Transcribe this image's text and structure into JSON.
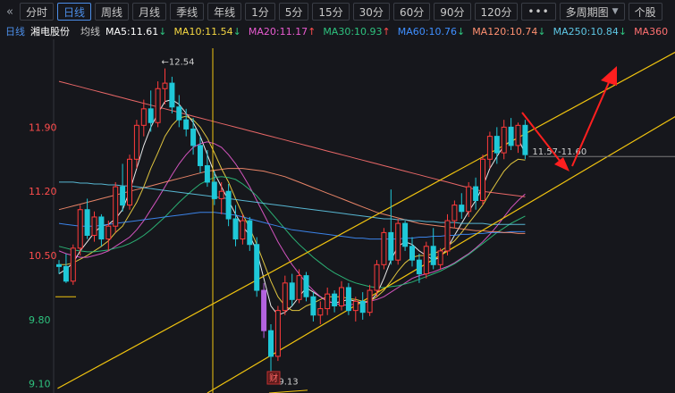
{
  "toolbar": {
    "collapse_glyph": "«",
    "tabs": [
      {
        "label": "分时",
        "active": false
      },
      {
        "label": "日线",
        "active": true
      },
      {
        "label": "周线",
        "active": false
      },
      {
        "label": "月线",
        "active": false
      },
      {
        "label": "季线",
        "active": false
      },
      {
        "label": "年线",
        "active": false
      },
      {
        "label": "1分",
        "active": false
      },
      {
        "label": "5分",
        "active": false
      },
      {
        "label": "15分",
        "active": false
      },
      {
        "label": "30分",
        "active": false
      },
      {
        "label": "60分",
        "active": false
      },
      {
        "label": "90分",
        "active": false
      },
      {
        "label": "120分",
        "active": false
      }
    ],
    "more_label": "•••",
    "multi_period_label": "多周期图",
    "stock_label": "个股"
  },
  "infobar": {
    "period": "日线",
    "stock_name": "湘电股份",
    "ma_label": "均线",
    "ma": [
      {
        "text": "MA5:11.61",
        "arrow": "↓",
        "color": "#ffffff",
        "arrow_color": "#2ec27e"
      },
      {
        "text": "MA10:11.54",
        "arrow": "↓",
        "color": "#f5d742",
        "arrow_color": "#2ec27e"
      },
      {
        "text": "MA20:11.17",
        "arrow": "↑",
        "color": "#e85bd0",
        "arrow_color": "#ff4d4d"
      },
      {
        "text": "MA30:10.93",
        "arrow": "↑",
        "color": "#2ec27e",
        "arrow_color": "#ff4d4d"
      },
      {
        "text": "MA60:10.76",
        "arrow": "↓",
        "color": "#3f8fff",
        "arrow_color": "#2ec27e"
      },
      {
        "text": "MA120:10.74",
        "arrow": "↓",
        "color": "#ff9070",
        "arrow_color": "#2ec27e"
      },
      {
        "text": "MA250:10.84",
        "arrow": "↓",
        "color": "#5ec8e6",
        "arrow_color": "#2ec27e"
      },
      {
        "text": "MA360",
        "arrow": "",
        "color": "#ff7070",
        "arrow_color": "#ff7070"
      }
    ]
  },
  "colors": {
    "up": "#ff3b3b",
    "down": "#1fc8d8",
    "down_special": "#b463e0",
    "axis_text": "#ff4d4d",
    "axis_text_low": "#2ec27e",
    "trend": "#f1c40f",
    "arrow": "#ff1f1f"
  },
  "chart_data": {
    "type": "candlestick",
    "y_ticks": [
      "11.90",
      "11.20",
      "10.50",
      "9.80",
      "9.10"
    ],
    "ylim": [
      9.0,
      12.8
    ],
    "annotations": {
      "high_label": "←12.54",
      "low_label": "←9.13",
      "range_label": "11.57-11.60",
      "event_marker": "财"
    },
    "candles": [
      [
        10.4,
        10.45,
        10.3,
        10.38
      ],
      [
        10.38,
        10.52,
        10.2,
        10.22
      ],
      [
        10.22,
        10.62,
        10.18,
        10.58
      ],
      [
        10.58,
        11.05,
        10.5,
        11.0
      ],
      [
        11.0,
        11.12,
        10.68,
        10.72
      ],
      [
        10.72,
        10.98,
        10.65,
        10.92
      ],
      [
        10.92,
        10.95,
        10.6,
        10.68
      ],
      [
        10.68,
        10.88,
        10.55,
        10.82
      ],
      [
        10.82,
        11.3,
        10.75,
        11.25
      ],
      [
        11.25,
        11.5,
        10.98,
        11.05
      ],
      [
        11.05,
        11.6,
        11.0,
        11.55
      ],
      [
        11.55,
        11.98,
        11.45,
        11.92
      ],
      [
        11.92,
        12.2,
        11.8,
        12.1
      ],
      [
        12.1,
        12.3,
        11.85,
        11.95
      ],
      [
        11.95,
        12.4,
        11.9,
        12.32
      ],
      [
        12.32,
        12.54,
        12.15,
        12.38
      ],
      [
        12.38,
        12.45,
        12.05,
        12.12
      ],
      [
        12.12,
        12.25,
        11.9,
        11.98
      ],
      [
        11.98,
        12.1,
        11.8,
        11.88
      ],
      [
        11.88,
        12.0,
        11.6,
        11.7
      ],
      [
        11.7,
        11.8,
        11.4,
        11.48
      ],
      [
        11.48,
        11.65,
        11.25,
        11.3
      ],
      [
        11.3,
        11.42,
        11.05,
        11.12
      ],
      [
        11.12,
        11.3,
        10.95,
        11.2
      ],
      [
        11.2,
        11.28,
        10.82,
        10.9
      ],
      [
        10.9,
        11.05,
        10.6,
        10.68
      ],
      [
        10.68,
        10.95,
        10.62,
        10.88
      ],
      [
        10.88,
        10.92,
        10.55,
        10.62
      ],
      [
        10.62,
        10.7,
        10.05,
        10.12
      ],
      [
        10.12,
        10.2,
        9.6,
        9.68
      ],
      [
        9.68,
        9.75,
        9.13,
        9.4
      ],
      [
        9.4,
        9.95,
        9.35,
        9.9
      ],
      [
        9.9,
        10.28,
        9.85,
        10.2
      ],
      [
        10.2,
        10.3,
        9.95,
        10.02
      ],
      [
        10.02,
        10.35,
        9.98,
        10.28
      ],
      [
        10.28,
        10.32,
        10.0,
        10.05
      ],
      [
        10.05,
        10.1,
        9.78,
        9.85
      ],
      [
        9.85,
        10.0,
        9.75,
        9.92
      ],
      [
        9.92,
        10.15,
        9.85,
        10.08
      ],
      [
        10.08,
        10.12,
        9.88,
        9.95
      ],
      [
        9.95,
        10.22,
        9.9,
        10.15
      ],
      [
        10.15,
        10.2,
        9.85,
        9.9
      ],
      [
        9.9,
        10.05,
        9.78,
        10.0
      ],
      [
        10.0,
        10.1,
        9.8,
        9.88
      ],
      [
        9.88,
        10.18,
        9.84,
        10.12
      ],
      [
        10.12,
        10.45,
        10.05,
        10.4
      ],
      [
        10.4,
        10.8,
        10.35,
        10.75
      ],
      [
        10.75,
        11.22,
        10.4,
        10.45
      ],
      [
        10.45,
        10.9,
        10.4,
        10.85
      ],
      [
        10.85,
        10.88,
        10.55,
        10.6
      ],
      [
        10.6,
        10.7,
        10.38,
        10.45
      ],
      [
        10.45,
        10.52,
        10.2,
        10.3
      ],
      [
        10.3,
        10.65,
        10.25,
        10.6
      ],
      [
        10.6,
        10.8,
        10.35,
        10.4
      ],
      [
        10.4,
        10.58,
        10.35,
        10.55
      ],
      [
        10.55,
        10.95,
        10.5,
        10.88
      ],
      [
        10.88,
        11.1,
        10.8,
        11.05
      ],
      [
        11.05,
        11.18,
        10.9,
        10.98
      ],
      [
        10.98,
        11.3,
        10.92,
        11.25
      ],
      [
        11.25,
        11.35,
        11.0,
        11.1
      ],
      [
        11.1,
        11.6,
        11.05,
        11.55
      ],
      [
        11.55,
        11.85,
        11.45,
        11.8
      ],
      [
        11.8,
        11.9,
        11.5,
        11.62
      ],
      [
        11.62,
        11.98,
        11.55,
        11.9
      ],
      [
        11.9,
        12.0,
        11.65,
        11.7
      ],
      [
        11.7,
        11.95,
        11.62,
        11.92
      ],
      [
        11.92,
        11.98,
        11.55,
        11.6
      ]
    ],
    "ma_series": [
      {
        "name": "MA5",
        "color": "#ffffff",
        "values": [
          10.3,
          10.35,
          10.42,
          10.55,
          10.65,
          10.75,
          10.82,
          10.84,
          10.9,
          11.0,
          11.2,
          11.45,
          11.7,
          11.9,
          12.05,
          12.18,
          12.2,
          12.15,
          12.05,
          11.95,
          11.8,
          11.6,
          11.4,
          11.25,
          11.1,
          10.95,
          10.82,
          10.72,
          10.55,
          10.25,
          9.95,
          9.85,
          9.88,
          9.95,
          10.05,
          10.15,
          10.1,
          10.05,
          10.0,
          9.98,
          10.0,
          10.02,
          10.0,
          9.98,
          10.0,
          10.08,
          10.25,
          10.45,
          10.6,
          10.65,
          10.62,
          10.55,
          10.5,
          10.45,
          10.48,
          10.58,
          10.72,
          10.85,
          10.98,
          11.1,
          11.25,
          11.45,
          11.58,
          11.7,
          11.75,
          11.78,
          11.61
        ]
      },
      {
        "name": "MA10",
        "color": "#f5d742",
        "values": [
          10.4,
          10.4,
          10.42,
          10.46,
          10.5,
          10.55,
          10.6,
          10.66,
          10.75,
          10.82,
          10.95,
          11.08,
          11.25,
          11.45,
          11.62,
          11.8,
          11.92,
          12.0,
          12.02,
          11.98,
          11.9,
          11.78,
          11.62,
          11.45,
          11.3,
          11.12,
          10.95,
          10.8,
          10.62,
          10.42,
          10.22,
          10.05,
          9.95,
          9.9,
          9.9,
          9.95,
          9.98,
          10.02,
          10.05,
          10.05,
          10.05,
          10.03,
          10.02,
          10.0,
          10.0,
          10.05,
          10.12,
          10.22,
          10.33,
          10.42,
          10.48,
          10.5,
          10.5,
          10.52,
          10.55,
          10.6,
          10.66,
          10.75,
          10.85,
          10.95,
          11.05,
          11.18,
          11.3,
          11.42,
          11.5,
          11.55,
          11.54
        ]
      },
      {
        "name": "MA20",
        "color": "#e85bd0",
        "values": [
          10.55,
          10.52,
          10.5,
          10.48,
          10.48,
          10.5,
          10.52,
          10.55,
          10.6,
          10.65,
          10.7,
          10.78,
          10.88,
          11.0,
          11.12,
          11.25,
          11.38,
          11.5,
          11.6,
          11.68,
          11.72,
          11.74,
          11.72,
          11.68,
          11.6,
          11.5,
          11.38,
          11.25,
          11.1,
          10.95,
          10.8,
          10.65,
          10.52,
          10.4,
          10.3,
          10.2,
          10.12,
          10.05,
          10.0,
          9.98,
          9.96,
          9.96,
          9.97,
          9.98,
          10.0,
          10.02,
          10.05,
          10.1,
          10.15,
          10.2,
          10.25,
          10.28,
          10.3,
          10.32,
          10.35,
          10.38,
          10.42,
          10.47,
          10.52,
          10.58,
          10.65,
          10.73,
          10.82,
          10.92,
          11.02,
          11.1,
          11.17
        ]
      },
      {
        "name": "MA30",
        "color": "#2ec27e",
        "values": [
          10.6,
          10.58,
          10.56,
          10.55,
          10.54,
          10.54,
          10.55,
          10.56,
          10.58,
          10.6,
          10.63,
          10.67,
          10.72,
          10.78,
          10.85,
          10.92,
          11.0,
          11.08,
          11.15,
          11.22,
          11.28,
          11.32,
          11.35,
          11.36,
          11.35,
          11.33,
          11.28,
          11.22,
          11.15,
          11.06,
          10.97,
          10.88,
          10.79,
          10.7,
          10.62,
          10.55,
          10.48,
          10.42,
          10.36,
          10.31,
          10.27,
          10.23,
          10.2,
          10.18,
          10.16,
          10.15,
          10.15,
          10.16,
          10.17,
          10.19,
          10.21,
          10.24,
          10.27,
          10.3,
          10.33,
          10.37,
          10.41,
          10.46,
          10.51,
          10.57,
          10.63,
          10.69,
          10.75,
          10.8,
          10.85,
          10.89,
          10.93
        ]
      },
      {
        "name": "MA60",
        "color": "#3f8fff",
        "values": [
          10.85,
          10.84,
          10.83,
          10.82,
          10.82,
          10.82,
          10.83,
          10.84,
          10.85,
          10.86,
          10.87,
          10.88,
          10.89,
          10.9,
          10.91,
          10.92,
          10.93,
          10.94,
          10.95,
          10.96,
          10.97,
          10.97,
          10.97,
          10.96,
          10.95,
          10.94,
          10.92,
          10.9,
          10.88,
          10.86,
          10.84,
          10.82,
          10.8,
          10.78,
          10.77,
          10.76,
          10.75,
          10.74,
          10.73,
          10.72,
          10.71,
          10.7,
          10.69,
          10.69,
          10.68,
          10.68,
          10.68,
          10.68,
          10.68,
          10.69,
          10.69,
          10.7,
          10.7,
          10.71,
          10.71,
          10.72,
          10.72,
          10.73,
          10.73,
          10.74,
          10.74,
          10.75,
          10.75,
          10.75,
          10.76,
          10.76,
          10.76
        ]
      },
      {
        "name": "MA120",
        "color": "#ff9070",
        "values": [
          11.0,
          11.02,
          11.04,
          11.06,
          11.08,
          11.1,
          11.12,
          11.14,
          11.16,
          11.18,
          11.2,
          11.22,
          11.24,
          11.26,
          11.28,
          11.3,
          11.32,
          11.34,
          11.36,
          11.38,
          11.4,
          11.42,
          11.43,
          11.44,
          11.45,
          11.45,
          11.45,
          11.44,
          11.43,
          11.42,
          11.4,
          11.38,
          11.36,
          11.33,
          11.3,
          11.27,
          11.24,
          11.21,
          11.18,
          11.15,
          11.12,
          11.09,
          11.06,
          11.03,
          11.0,
          10.97,
          10.95,
          10.93,
          10.91,
          10.89,
          10.87,
          10.85,
          10.84,
          10.83,
          10.82,
          10.81,
          10.8,
          10.79,
          10.78,
          10.77,
          10.77,
          10.76,
          10.76,
          10.75,
          10.75,
          10.74,
          10.74
        ]
      },
      {
        "name": "MA250",
        "color": "#5ec8e6",
        "values": [
          11.3,
          11.3,
          11.3,
          11.29,
          11.29,
          11.28,
          11.28,
          11.27,
          11.27,
          11.26,
          11.26,
          11.25,
          11.24,
          11.23,
          11.22,
          11.21,
          11.2,
          11.19,
          11.18,
          11.17,
          11.16,
          11.15,
          11.14,
          11.13,
          11.12,
          11.11,
          11.1,
          11.09,
          11.08,
          11.07,
          11.06,
          11.05,
          11.04,
          11.03,
          11.02,
          11.01,
          11.0,
          10.99,
          10.98,
          10.97,
          10.96,
          10.95,
          10.94,
          10.93,
          10.92,
          10.91,
          10.9,
          10.9,
          10.89,
          10.89,
          10.88,
          10.88,
          10.87,
          10.87,
          10.86,
          10.86,
          10.86,
          10.85,
          10.85,
          10.85,
          10.85,
          10.84,
          10.84,
          10.84,
          10.84,
          10.84,
          10.84
        ]
      },
      {
        "name": "MA360",
        "color": "#ff7070",
        "values": [
          12.4,
          12.38,
          12.36,
          12.34,
          12.32,
          12.3,
          12.28,
          12.26,
          12.24,
          12.22,
          12.2,
          12.18,
          12.16,
          12.14,
          12.12,
          12.1,
          12.08,
          12.06,
          12.04,
          12.02,
          12.0,
          11.98,
          11.96,
          11.94,
          11.92,
          11.9,
          11.88,
          11.86,
          11.84,
          11.82,
          11.8,
          11.78,
          11.76,
          11.74,
          11.72,
          11.7,
          11.68,
          11.66,
          11.64,
          11.62,
          11.6,
          11.58,
          11.56,
          11.54,
          11.52,
          11.5,
          11.48,
          11.46,
          11.44,
          11.42,
          11.4,
          11.38,
          11.36,
          11.34,
          11.32,
          11.3,
          11.28,
          11.26,
          11.24,
          11.22,
          11.2,
          11.19,
          11.18,
          11.17,
          11.16,
          11.15,
          11.14
        ]
      }
    ]
  }
}
